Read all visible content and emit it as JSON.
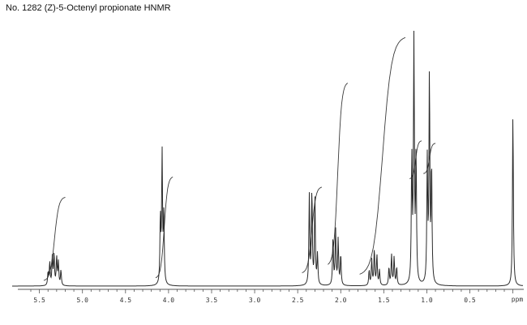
{
  "title": "No. 1282 (Z)-5-Octenyl propionate HNMR",
  "colors": {
    "ink": "#2a2a2a",
    "background": "#ffffff"
  },
  "chart_data": {
    "type": "line",
    "title": "No. 1282 (Z)-5-Octenyl propionate HNMR",
    "xlabel": "",
    "ylabel": "",
    "unit_label": "ppm",
    "x_reversed": true,
    "xlim": [
      5.6,
      -0.06
    ],
    "ylim": [
      0,
      1
    ],
    "grid": false,
    "tick_values": [
      5.5,
      5.0,
      4.5,
      4.0,
      3.5,
      3.0,
      2.5,
      2.0,
      1.5,
      1.0,
      0.5
    ],
    "tick_labels": [
      "5.5",
      "5.0",
      "4.5",
      "4.0",
      "3.5",
      "3.0",
      "2.5",
      "2.0",
      "1.5",
      "1.0",
      "0.5"
    ],
    "peaks": [
      {
        "x": 5.38,
        "y": 0.09
      },
      {
        "x": 5.35,
        "y": 0.11
      },
      {
        "x": 5.33,
        "y": 0.12
      },
      {
        "x": 5.3,
        "y": 0.11
      },
      {
        "x": 5.28,
        "y": 0.09
      },
      {
        "x": 5.25,
        "y": 0.06
      },
      {
        "x": 5.4,
        "y": 0.05
      },
      {
        "x": 4.095,
        "y": 0.26
      },
      {
        "x": 4.075,
        "y": 0.51
      },
      {
        "x": 4.055,
        "y": 0.26
      },
      {
        "x": 2.365,
        "y": 0.35
      },
      {
        "x": 2.335,
        "y": 0.37
      },
      {
        "x": 2.3,
        "y": 0.34
      },
      {
        "x": 2.27,
        "y": 0.12
      },
      {
        "x": 2.09,
        "y": 0.19
      },
      {
        "x": 2.06,
        "y": 0.22
      },
      {
        "x": 2.03,
        "y": 0.18
      },
      {
        "x": 2.0,
        "y": 0.12
      },
      {
        "x": 1.67,
        "y": 0.06
      },
      {
        "x": 1.64,
        "y": 0.1
      },
      {
        "x": 1.61,
        "y": 0.14
      },
      {
        "x": 1.58,
        "y": 0.12
      },
      {
        "x": 1.55,
        "y": 0.06
      },
      {
        "x": 1.44,
        "y": 0.07
      },
      {
        "x": 1.41,
        "y": 0.12
      },
      {
        "x": 1.38,
        "y": 0.11
      },
      {
        "x": 1.35,
        "y": 0.07
      },
      {
        "x": 1.175,
        "y": 0.49
      },
      {
        "x": 1.15,
        "y": 0.99
      },
      {
        "x": 1.125,
        "y": 0.5
      },
      {
        "x": 0.995,
        "y": 0.48
      },
      {
        "x": 0.97,
        "y": 0.82
      },
      {
        "x": 0.945,
        "y": 0.46
      },
      {
        "x": 0.0,
        "y": 0.68
      }
    ],
    "integrals": [
      {
        "from": 5.45,
        "to": 5.2,
        "y0": 0.02,
        "y1": 0.35
      },
      {
        "from": 4.15,
        "to": 3.95,
        "y0": 0.03,
        "y1": 0.43
      },
      {
        "from": 2.45,
        "to": 2.22,
        "y0": 0.05,
        "y1": 0.39
      },
      {
        "from": 2.15,
        "to": 1.92,
        "y0": 0.08,
        "y1": 0.8
      },
      {
        "from": 1.78,
        "to": 1.25,
        "y0": 0.04,
        "y1": 0.98
      },
      {
        "from": 1.2,
        "to": 1.06,
        "y0": 0.42,
        "y1": 0.57
      },
      {
        "from": 1.04,
        "to": 0.9,
        "y0": 0.44,
        "y1": 0.56
      }
    ]
  }
}
